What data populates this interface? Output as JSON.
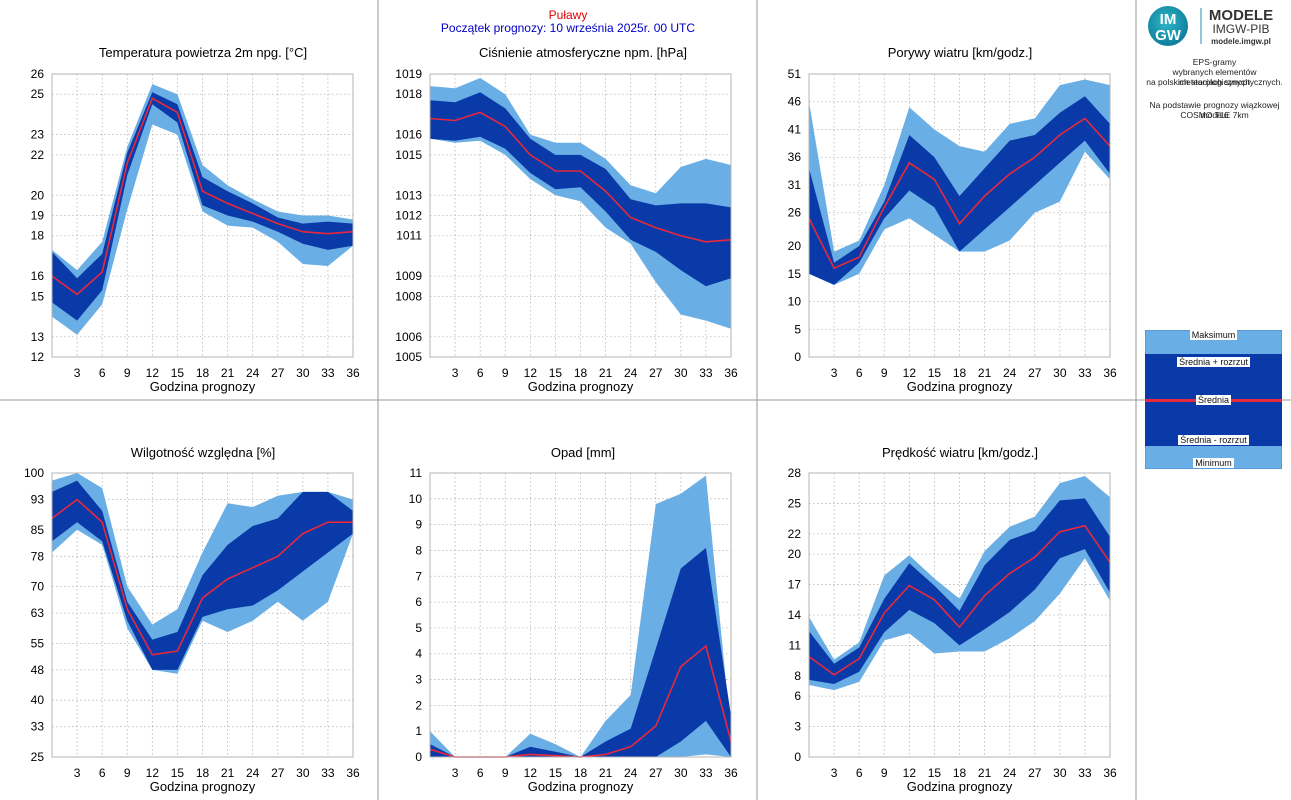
{
  "header": {
    "station": "Puławy",
    "forecast_start": "Początek prognozy: 10 września 2025r. 00 UTC"
  },
  "logo": {
    "mark_top": "IM",
    "mark_bottom": "GW",
    "line1": "MODELE",
    "line2": "IMGW-PIB",
    "line3": "modele.imgw.pl"
  },
  "description": {
    "line1": "EPS-gramy",
    "line2": "wybranych elementów meteorologicznych",
    "line3": "na polskich stacjach  synoptycznych.",
    "line4": "Na podstawie prognozy wiązkowej modelu",
    "line5": "COSMO TLE 7km"
  },
  "legend": {
    "max": "Maksimum",
    "plus": "Średnia + rozrzut",
    "mean": "Średnia",
    "minus": "Średnia - rozrzut",
    "min": "Minimum"
  },
  "colors": {
    "minmax_band": "#6aaee6",
    "spread_band": "#0a3aa8",
    "mean_line": "#e8283c",
    "grid": "#b4b4b4",
    "station_text": "#e00000",
    "start_text": "#0000c8"
  },
  "chart_data": [
    {
      "type": "area",
      "title": "Temperatura powietrza 2m npg. [°C]",
      "xlabel": "Godzina prognozy",
      "ylabel": "",
      "x": [
        0,
        3,
        6,
        9,
        12,
        15,
        18,
        21,
        24,
        27,
        30,
        33,
        36
      ],
      "xticks": [
        3,
        6,
        9,
        12,
        15,
        18,
        21,
        24,
        27,
        30,
        33,
        36
      ],
      "yticks": [
        12,
        13,
        15,
        16,
        18,
        19,
        20,
        22,
        23,
        25,
        26
      ],
      "ylim": [
        12,
        26
      ],
      "max": [
        17.3,
        16.3,
        17.7,
        22.4,
        25.5,
        25.0,
        21.5,
        20.5,
        19.8,
        19.2,
        19.0,
        19.0,
        18.8
      ],
      "plus": [
        17.2,
        15.9,
        17.1,
        22.1,
        25.1,
        24.5,
        20.9,
        20.2,
        19.6,
        18.9,
        18.6,
        18.7,
        18.6
      ],
      "mean": [
        16.0,
        15.1,
        16.2,
        21.6,
        24.8,
        24.1,
        20.2,
        19.6,
        19.1,
        18.6,
        18.2,
        18.1,
        18.2
      ],
      "minus": [
        14.7,
        13.8,
        15.3,
        21.0,
        24.5,
        23.6,
        19.5,
        19.0,
        18.7,
        18.2,
        17.6,
        17.3,
        17.5
      ],
      "min": [
        14.0,
        13.1,
        14.6,
        19.3,
        23.5,
        23.0,
        19.2,
        18.5,
        18.4,
        17.7,
        16.6,
        16.5,
        17.5
      ]
    },
    {
      "type": "area",
      "title": "Ciśnienie atmosferyczne npm. [hPa]",
      "xlabel": "Godzina prognozy",
      "ylabel": "",
      "x": [
        0,
        3,
        6,
        9,
        12,
        15,
        18,
        21,
        24,
        27,
        30,
        33,
        36
      ],
      "xticks": [
        3,
        6,
        9,
        12,
        15,
        18,
        21,
        24,
        27,
        30,
        33,
        36
      ],
      "yticks": [
        1005,
        1006,
        1008,
        1009,
        1011,
        1012,
        1013,
        1015,
        1016,
        1018,
        1019
      ],
      "ylim": [
        1005,
        1019
      ],
      "max": [
        1018.4,
        1018.3,
        1018.8,
        1018.0,
        1016.0,
        1015.6,
        1015.6,
        1014.8,
        1013.5,
        1013.1,
        1014.4,
        1014.8,
        1014.5
      ],
      "plus": [
        1017.7,
        1017.6,
        1018.1,
        1017.3,
        1015.8,
        1015.0,
        1015.0,
        1014.3,
        1012.8,
        1012.5,
        1012.6,
        1012.6,
        1012.4
      ],
      "mean": [
        1016.8,
        1016.7,
        1017.1,
        1016.4,
        1015.0,
        1014.2,
        1014.2,
        1013.2,
        1011.9,
        1011.4,
        1011.0,
        1010.7,
        1010.8
      ],
      "minus": [
        1015.8,
        1015.7,
        1015.9,
        1015.3,
        1014.1,
        1013.3,
        1013.4,
        1012.2,
        1010.8,
        1010.2,
        1009.3,
        1008.5,
        1008.9
      ],
      "min": [
        1015.8,
        1015.6,
        1015.7,
        1015.0,
        1013.8,
        1013.0,
        1012.7,
        1011.4,
        1010.6,
        1008.7,
        1007.1,
        1006.8,
        1006.4
      ]
    },
    {
      "type": "area",
      "title": "Porywy wiatru [km/godz.]",
      "xlabel": "Godzina prognozy",
      "ylabel": "",
      "x": [
        0,
        3,
        6,
        9,
        12,
        15,
        18,
        21,
        24,
        27,
        30,
        33,
        36
      ],
      "xticks": [
        3,
        6,
        9,
        12,
        15,
        18,
        21,
        24,
        27,
        30,
        33,
        36
      ],
      "yticks": [
        0,
        5,
        10,
        15,
        20,
        26,
        31,
        36,
        41,
        46,
        51
      ],
      "ylim": [
        0,
        51
      ],
      "max": [
        46,
        19,
        21,
        31,
        45,
        41,
        38,
        37,
        42,
        43,
        49,
        50,
        49
      ],
      "plus": [
        34,
        17,
        20,
        28,
        40,
        36,
        29,
        34,
        39,
        40,
        44,
        47,
        42
      ],
      "mean": [
        25,
        16,
        18,
        27,
        35,
        32,
        24,
        29,
        33,
        36,
        40,
        43,
        38
      ],
      "minus": [
        15,
        13,
        17,
        25,
        30,
        27,
        19,
        23,
        27,
        31,
        35,
        39,
        33
      ],
      "min": [
        15,
        13,
        15,
        23,
        25,
        22,
        19,
        19,
        21,
        26,
        28,
        37,
        32
      ]
    },
    {
      "type": "area",
      "title": "Wilgotność względna [%]",
      "xlabel": "Godzina prognozy",
      "ylabel": "",
      "x": [
        0,
        3,
        6,
        9,
        12,
        15,
        18,
        21,
        24,
        27,
        30,
        33,
        36
      ],
      "xticks": [
        3,
        6,
        9,
        12,
        15,
        18,
        21,
        24,
        27,
        30,
        33,
        36
      ],
      "yticks": [
        25,
        33,
        40,
        48,
        55,
        63,
        70,
        78,
        85,
        93,
        100
      ],
      "ylim": [
        25,
        100
      ],
      "max": [
        98,
        100,
        96,
        70,
        60,
        64,
        79,
        92,
        91,
        94,
        95,
        95,
        93
      ],
      "plus": [
        95,
        98,
        90,
        66,
        56,
        58,
        73,
        81,
        86,
        88,
        95,
        95,
        90
      ],
      "mean": [
        88,
        93,
        87,
        64,
        52,
        53,
        67,
        72,
        75,
        78,
        84,
        87,
        87
      ],
      "minus": [
        82,
        87,
        82,
        61,
        48,
        48,
        62,
        64,
        65,
        69,
        74,
        79,
        84
      ],
      "min": [
        79,
        85,
        81,
        59,
        48,
        47,
        61,
        58,
        61,
        66,
        61,
        66,
        84
      ]
    },
    {
      "type": "area",
      "title": "Opad [mm]",
      "xlabel": "Godzina prognozy",
      "ylabel": "",
      "x": [
        0,
        3,
        6,
        9,
        12,
        15,
        18,
        21,
        24,
        27,
        30,
        33,
        36
      ],
      "xticks": [
        3,
        6,
        9,
        12,
        15,
        18,
        21,
        24,
        27,
        30,
        33,
        36
      ],
      "yticks": [
        0,
        1,
        2,
        3,
        4,
        5,
        6,
        7,
        8,
        9,
        10,
        11
      ],
      "ylim": [
        0,
        11
      ],
      "max": [
        1.0,
        0,
        0,
        0,
        0.9,
        0.5,
        0,
        1.4,
        2.4,
        9.8,
        10.2,
        10.9,
        0.9
      ],
      "plus": [
        0.5,
        0,
        0,
        0,
        0.4,
        0.2,
        0,
        0.6,
        1.1,
        4.2,
        7.3,
        8.1,
        1.6
      ],
      "mean": [
        0.3,
        0,
        0,
        0,
        0.1,
        0.05,
        0,
        0.1,
        0.4,
        1.2,
        3.5,
        4.3,
        0.6
      ],
      "minus": [
        0,
        0,
        0,
        0,
        0,
        0,
        0,
        0,
        0,
        0,
        0.6,
        1.4,
        0
      ],
      "min": [
        0,
        0,
        0,
        0,
        0,
        0,
        0,
        0,
        0,
        0,
        0,
        0.1,
        0
      ]
    },
    {
      "type": "area",
      "title": "Prędkość wiatru [km/godz.]",
      "xlabel": "Godzina prognozy",
      "ylabel": "",
      "x": [
        0,
        3,
        6,
        9,
        12,
        15,
        18,
        21,
        24,
        27,
        30,
        33,
        36
      ],
      "xticks": [
        3,
        6,
        9,
        12,
        15,
        18,
        21,
        24,
        27,
        30,
        33,
        36
      ],
      "yticks": [
        0,
        3,
        6,
        8,
        11,
        14,
        17,
        20,
        22,
        25,
        28
      ],
      "ylim": [
        0,
        28
      ],
      "max": [
        13.8,
        9.6,
        11.3,
        17.9,
        19.9,
        17.6,
        15.6,
        20.3,
        22.7,
        23.7,
        27.0,
        27.7,
        25.6
      ],
      "plus": [
        12.4,
        9.2,
        10.8,
        15.6,
        19.1,
        16.9,
        14.4,
        18.9,
        21.4,
        22.3,
        25.3,
        25.5,
        21.7
      ],
      "mean": [
        9.9,
        8.1,
        9.7,
        14.2,
        16.9,
        15.5,
        12.8,
        15.9,
        18.1,
        19.7,
        22.2,
        22.8,
        19.2
      ],
      "minus": [
        7.6,
        7.2,
        8.4,
        12.3,
        14.5,
        13.2,
        11.0,
        12.6,
        14.3,
        16.5,
        19.6,
        20.5,
        16.2
      ],
      "min": [
        7.1,
        6.6,
        7.4,
        11.5,
        12.2,
        10.2,
        10.4,
        10.4,
        11.7,
        13.4,
        16.1,
        19.6,
        15.4
      ]
    }
  ]
}
